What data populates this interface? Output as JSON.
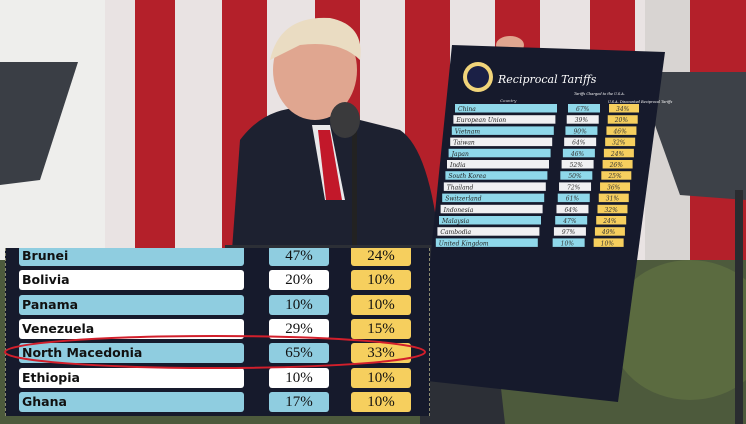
{
  "board": {
    "title": "Reciprocal Tariffs",
    "col_country": "Country",
    "col_charged": "Tariffs Charged to the U.S.A.",
    "col_reciprocal": "U.S.A. Discounted Reciprocal Tariffs",
    "rows": [
      {
        "country": "China",
        "charged": "67%",
        "reciprocal": "34%"
      },
      {
        "country": "European Union",
        "charged": "39%",
        "reciprocal": "20%"
      },
      {
        "country": "Vietnam",
        "charged": "90%",
        "reciprocal": "46%"
      },
      {
        "country": "Taiwan",
        "charged": "64%",
        "reciprocal": "32%"
      },
      {
        "country": "Japan",
        "charged": "46%",
        "reciprocal": "24%"
      },
      {
        "country": "India",
        "charged": "52%",
        "reciprocal": "26%"
      },
      {
        "country": "South Korea",
        "charged": "50%",
        "reciprocal": "25%"
      },
      {
        "country": "Thailand",
        "charged": "72%",
        "reciprocal": "36%"
      },
      {
        "country": "Switzerland",
        "charged": "61%",
        "reciprocal": "31%"
      },
      {
        "country": "Indonesia",
        "charged": "64%",
        "reciprocal": "32%"
      },
      {
        "country": "Malaysia",
        "charged": "47%",
        "reciprocal": "24%"
      },
      {
        "country": "Cambodia",
        "charged": "97%",
        "reciprocal": "49%"
      },
      {
        "country": "United Kingdom",
        "charged": "10%",
        "reciprocal": "10%"
      }
    ]
  },
  "overlay_table": {
    "highlight_color": "#d21f2b",
    "highlighted_country": "North Macedonia",
    "rows": [
      {
        "country": "Brunei",
        "charged": "47%",
        "reciprocal": "24%"
      },
      {
        "country": "Bolivia",
        "charged": "20%",
        "reciprocal": "10%"
      },
      {
        "country": "Panama",
        "charged": "10%",
        "reciprocal": "10%"
      },
      {
        "country": "Venezuela",
        "charged": "29%",
        "reciprocal": "15%"
      },
      {
        "country": "North Macedonia",
        "charged": "65%",
        "reciprocal": "33%"
      },
      {
        "country": "Ethiopia",
        "charged": "10%",
        "reciprocal": "10%"
      },
      {
        "country": "Ghana",
        "charged": "17%",
        "reciprocal": "10%"
      }
    ]
  }
}
